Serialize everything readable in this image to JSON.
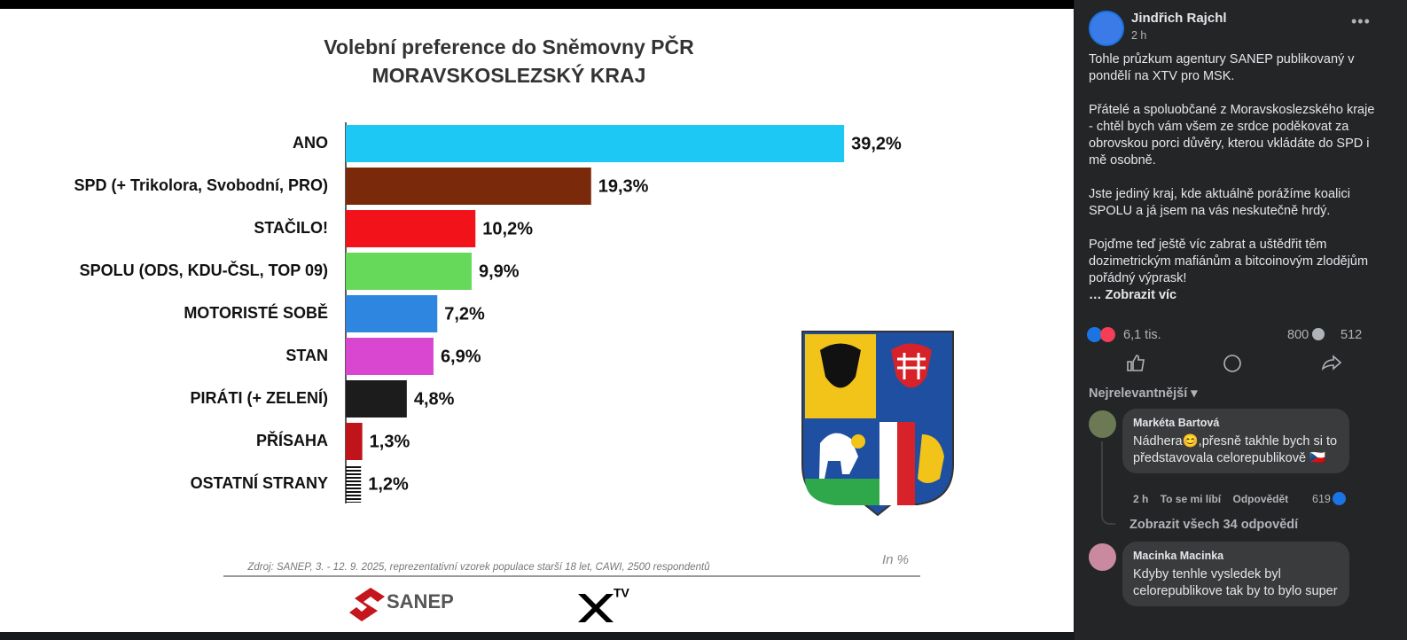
{
  "chart_data": {
    "type": "bar",
    "title": "Volební preference do Sněmovny PČR",
    "subtitle": "MORAVSKOSLEZSKÝ KRAJ",
    "categories": [
      "ANO",
      "SPD (+ Trikolora, Svobodní, PRO)",
      "STAČILO!",
      "SPOLU (ODS, KDU-ČSL, TOP 09)",
      "MOTORISTÉ SOBĚ",
      "STAN",
      "PIRÁTI (+ ZELENÍ)",
      "PŘÍSAHA",
      "OSTATNÍ STRANY"
    ],
    "values": [
      39.2,
      19.3,
      10.2,
      9.9,
      7.2,
      6.9,
      4.8,
      1.3,
      1.2
    ],
    "value_labels": [
      "39,2%",
      "19,3%",
      "10,2%",
      "9,9%",
      "7,2%",
      "6,9%",
      "4,8%",
      "1,3%",
      "1,2%"
    ],
    "colors": [
      "#1ec8f5",
      "#7a2a0a",
      "#f2121a",
      "#66d95a",
      "#2f86e0",
      "#d946d0",
      "#1c1c1c",
      "#c0141a",
      "#111111"
    ],
    "patterns": [
      null,
      null,
      null,
      null,
      null,
      null,
      null,
      null,
      "horizontal-lines"
    ],
    "source": "Zdroj: SANEP, 3. - 12. 9. 2025, reprezentativní vzorek populace starší 18 let, CAWI, 2500 respondentů",
    "unit_note": "In %",
    "logos": [
      "SANEP",
      "TV"
    ]
  },
  "post": {
    "author": "Jindřich Rajchl",
    "time": "2 h",
    "paragraphs": [
      "Tohle průzkum agentury SANEP publikovaný v pondělí na XTV pro MSK.",
      "Přátelé a spoluobčané z Moravskoslezského kraje - chtěl bych vám všem ze srdce poděkovat za obrovskou porci důvěry, kterou vkládáte do SPD i mě osobně.",
      "Jste jediný kraj, kde aktuálně porážíme koalici SPOLU a já jsem na vás neskutečně hrdý.",
      "Pojďme teď ještě víc zabrat a uštědřit těm dozimetrickým mafiánům a bitcoinovým zlodějům pořádný výprask!"
    ],
    "see_more": "… Zobrazit víc",
    "reactions": "6,1 tis.",
    "comments_count": "800",
    "shares_count": "512",
    "sort": "Nejrelevantnější",
    "comments": [
      {
        "name": "Markéta Bartová",
        "text": "Nádhera😊,přesně takhle bych si to představovala celorepublikově 🇨🇿",
        "time": "2 h",
        "like": "To se mi líbí",
        "reply": "Odpovědět",
        "likes": "619",
        "replies": "Zobrazit všech 34 odpovědí"
      },
      {
        "name": "Macinka Macinka",
        "text": "Kdyby tenhle vysledek byl celorepublikove tak by to bylo super"
      }
    ]
  }
}
